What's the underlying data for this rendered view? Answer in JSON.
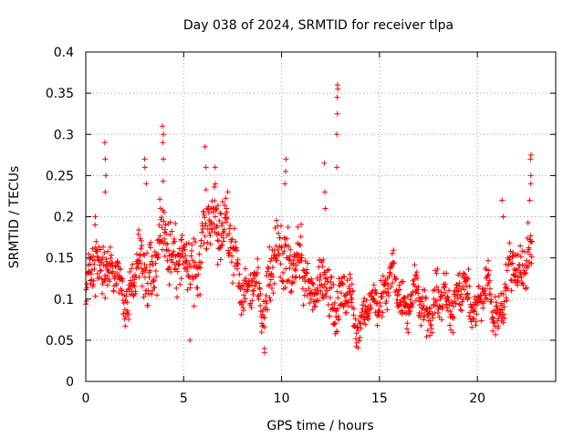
{
  "chart_data": {
    "type": "scatter",
    "title": "Day 038 of 2024, SRMTID for receiver tlpa",
    "xlabel": "GPS time / hours",
    "ylabel": "SRMTID / TECUs",
    "xlim": [
      0,
      24
    ],
    "ylim": [
      0,
      0.4
    ],
    "xticks": [
      0,
      5,
      10,
      15,
      20
    ],
    "xtick_labels": [
      "0",
      "5",
      "10",
      "15",
      "20"
    ],
    "yticks": [
      0,
      0.05,
      0.1,
      0.15,
      0.2,
      0.25,
      0.3,
      0.35,
      0.4
    ],
    "ytick_labels": [
      "0",
      "0.05",
      "0.1",
      "0.15",
      "0.2",
      "0.25",
      "0.3",
      "0.35",
      "0.4"
    ],
    "grid": true,
    "marker": "plus",
    "point_color": "#ff0000",
    "x_range_hours": [
      0,
      22.8
    ],
    "profile": {
      "x": [
        0,
        0.3,
        0.6,
        0.9,
        1.2,
        1.6,
        2.0,
        2.5,
        3.0,
        3.5,
        4.0,
        4.5,
        5.0,
        5.5,
        6.0,
        6.5,
        7.0,
        7.5,
        8.0,
        8.5,
        9.0,
        9.5,
        10.0,
        10.5,
        11.0,
        11.5,
        12.0,
        12.5,
        13.0,
        13.5,
        14.0,
        14.5,
        15.0,
        15.5,
        16.0,
        16.5,
        17.0,
        17.5,
        18.0,
        18.5,
        19.0,
        19.5,
        20.0,
        20.5,
        21.0,
        21.5,
        22.0,
        22.5,
        22.8
      ],
      "y": [
        0.1,
        0.12,
        0.14,
        0.16,
        0.13,
        0.12,
        0.11,
        0.12,
        0.15,
        0.14,
        0.18,
        0.16,
        0.13,
        0.14,
        0.17,
        0.19,
        0.2,
        0.15,
        0.12,
        0.11,
        0.1,
        0.14,
        0.16,
        0.15,
        0.13,
        0.12,
        0.11,
        0.11,
        0.1,
        0.09,
        0.08,
        0.08,
        0.11,
        0.12,
        0.11,
        0.1,
        0.1,
        0.09,
        0.09,
        0.1,
        0.11,
        0.1,
        0.1,
        0.1,
        0.09,
        0.11,
        0.15,
        0.15,
        0.15
      ],
      "spread": [
        0.02,
        0.03,
        0.04,
        0.04,
        0.03,
        0.03,
        0.03,
        0.04,
        0.05,
        0.04,
        0.05,
        0.05,
        0.04,
        0.04,
        0.05,
        0.04,
        0.04,
        0.04,
        0.03,
        0.03,
        0.03,
        0.04,
        0.05,
        0.04,
        0.04,
        0.03,
        0.03,
        0.04,
        0.04,
        0.03,
        0.02,
        0.02,
        0.03,
        0.03,
        0.03,
        0.03,
        0.03,
        0.03,
        0.03,
        0.03,
        0.03,
        0.03,
        0.03,
        0.03,
        0.03,
        0.03,
        0.04,
        0.04,
        0.04
      ]
    },
    "highlights": [
      {
        "x": 0.5,
        "values": [
          0.19,
          0.2
        ]
      },
      {
        "x": 1.0,
        "values": [
          0.23,
          0.25,
          0.27,
          0.29
        ]
      },
      {
        "x": 3.05,
        "values": [
          0.24,
          0.26,
          0.27
        ]
      },
      {
        "x": 3.95,
        "values": [
          0.27,
          0.29,
          0.3,
          0.31
        ]
      },
      {
        "x": 6.1,
        "values": [
          0.26,
          0.285
        ]
      },
      {
        "x": 6.6,
        "values": [
          0.24,
          0.26
        ]
      },
      {
        "x": 10.2,
        "values": [
          0.24,
          0.255,
          0.27
        ]
      },
      {
        "x": 12.2,
        "values": [
          0.21,
          0.23,
          0.265
        ]
      },
      {
        "x": 12.85,
        "values": [
          0.26,
          0.3,
          0.325,
          0.345,
          0.355,
          0.36
        ]
      },
      {
        "x": 22.7,
        "values": [
          0.22,
          0.24,
          0.25,
          0.27,
          0.275
        ]
      },
      {
        "x": 21.3,
        "values": [
          0.2,
          0.22
        ]
      },
      {
        "x": 9.1,
        "values": [
          0.035,
          0.04
        ]
      },
      {
        "x": 5.3,
        "values": [
          0.05
        ]
      }
    ]
  }
}
